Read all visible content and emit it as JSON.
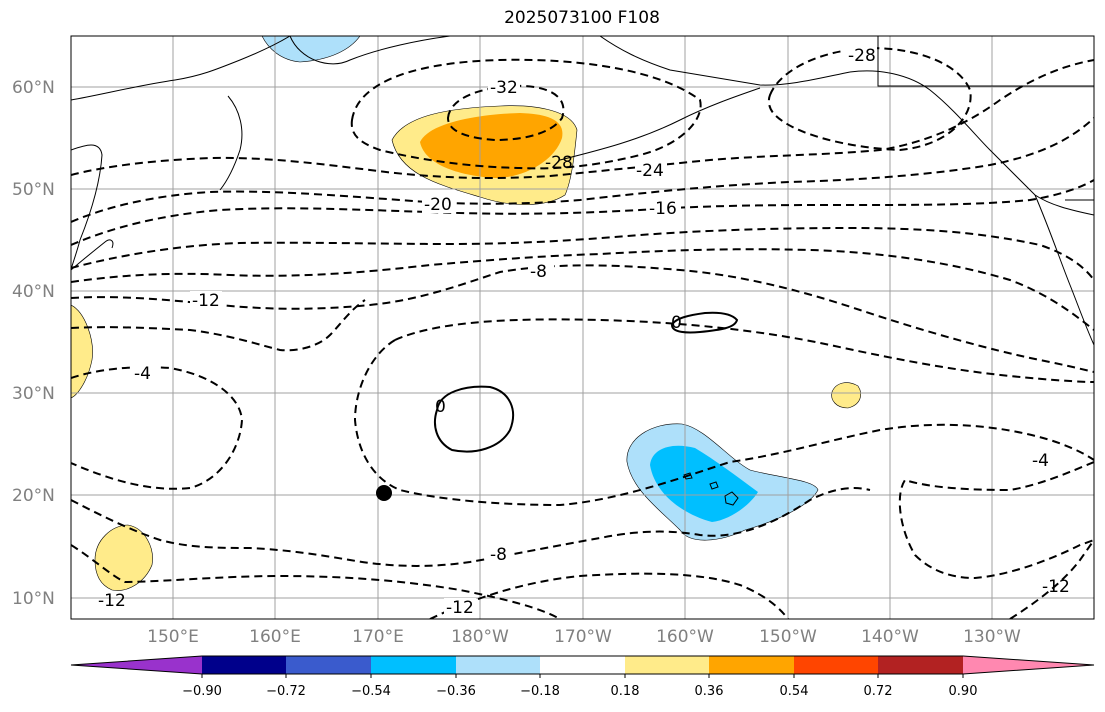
{
  "title": "2025073100 F108",
  "lat_labels": [
    "60°N",
    "50°N",
    "40°N",
    "30°N",
    "20°N",
    "10°N"
  ],
  "lon_labels": [
    "150°E",
    "160°E",
    "170°E",
    "180°W",
    "170°W",
    "160°W",
    "150°W",
    "140°W",
    "130°W"
  ],
  "contour_labels": {
    "c28_ne": "-28",
    "c32": "-32",
    "c28_mid": "-28",
    "c24": "-24",
    "c20": "-20",
    "c16": "-16",
    "c8_n": "-8",
    "c12_w": "-12",
    "c4_w": "-4",
    "c0_a": "0",
    "c0_b": "0",
    "c4_e": "-4",
    "c8_s": "-8",
    "c12_s": "-12",
    "c12_sw": "-12",
    "c12_se": "-12"
  },
  "colorbar": {
    "colors": [
      "#9932cc",
      "#00008b",
      "#3a5bcd",
      "#00bfff",
      "#aee0fa",
      "#ffffff",
      "#ffeb8a",
      "#ffa500",
      "#ff4500",
      "#b22222",
      "#ff88b0"
    ],
    "tick_labels": [
      "−0.90",
      "−0.72",
      "−0.54",
      "−0.36",
      "−0.18",
      "0.18",
      "0.36",
      "0.54",
      "0.72",
      "0.90"
    ]
  },
  "colors": {
    "contour": "#000000",
    "grid": "#a0a0a0",
    "coast": "#000000"
  }
}
